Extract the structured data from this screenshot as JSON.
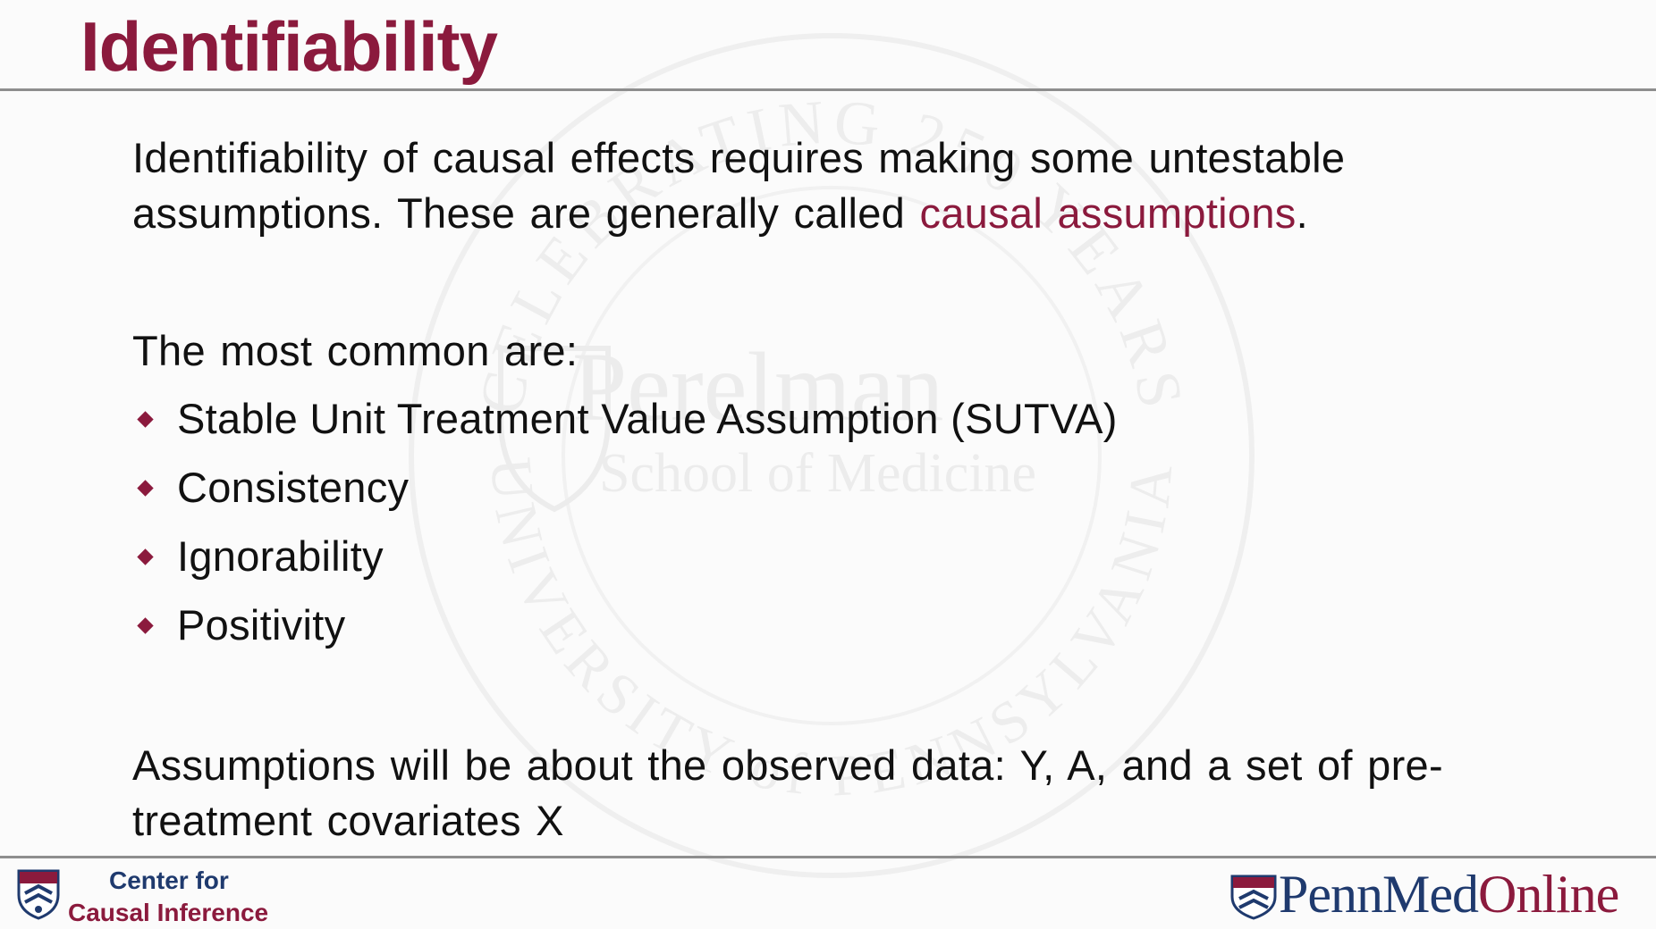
{
  "slide": {
    "title": "Identifiability",
    "intro_part1": "Identifiability of causal effects requires making some untestable assumptions. These are generally called ",
    "intro_highlight": "causal assumptions",
    "intro_end": ".",
    "common_heading": "The most common are:",
    "bullets": [
      "Stable Unit Treatment Value Assumption (SUTVA)",
      "Consistency",
      "Ignorability",
      "Positivity"
    ],
    "closing": "Assumptions will be about the observed data: Y, A, and a set of pre-treatment covariates X"
  },
  "footer": {
    "left_logo_line1": "Center for",
    "left_logo_line2": "Causal Inference",
    "right_logo_part1": "PennMed",
    "right_logo_part2": "Online"
  },
  "watermark": {
    "top_arc": "CELEBRATING 250 YEARS",
    "bottom_arc": "UNIVERSITY of PENNSYLVANIA",
    "line1": "Perelman",
    "line2": "School of Medicine"
  },
  "colors": {
    "accent": "#8b1a3d",
    "navy": "#1f3a6e",
    "rule": "#8e8e8e"
  }
}
